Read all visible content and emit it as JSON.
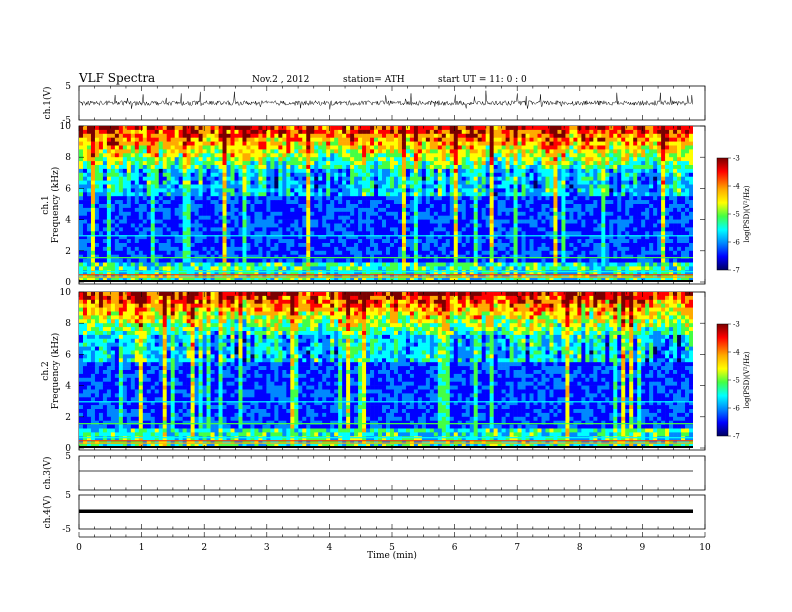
{
  "header": {
    "title": "VLF  Spectra",
    "date": "Nov.2  , 2012",
    "station": "station= ATH",
    "start": "start  UT  =    11: 0   : 0"
  },
  "colorbar": {
    "label": "log(PSD)(V²/Hz)",
    "ticks": [
      "-3",
      "-4",
      "-5",
      "-6",
      "-7"
    ],
    "colors": [
      "#7a0000",
      "#ff0000",
      "#ffaa00",
      "#ffff00",
      "#44ff44",
      "#00ffff",
      "#0088ff",
      "#0000ff",
      "#000060"
    ]
  },
  "chart_data": [
    {
      "type": "line",
      "panel": "ch1-waveform",
      "ylabel": "ch.1(V)",
      "yticks": [
        "5",
        "-5"
      ],
      "ylim": [
        -5,
        5
      ],
      "xlim": [
        0,
        10
      ],
      "description_level": "noisy broadband signal around ~0 V with spikes"
    },
    {
      "type": "heatmap",
      "panel": "ch1-spectrogram",
      "ylabel_channel": "ch.1",
      "ylabel": "Frequency  (kHz)",
      "yticks": [
        "0",
        "2",
        "4",
        "6",
        "8",
        "10"
      ],
      "ylim": [
        0,
        10
      ],
      "xlim": [
        0,
        9.8
      ],
      "zlim": [
        -7,
        -3
      ]
    },
    {
      "type": "heatmap",
      "panel": "ch2-spectrogram",
      "ylabel_channel": "ch.2",
      "ylabel": "Frequency  (kHz)",
      "yticks": [
        "0",
        "2",
        "4",
        "6",
        "8",
        "10"
      ],
      "ylim": [
        0,
        10
      ],
      "xlim": [
        0,
        9.8
      ],
      "zlim": [
        -7,
        -3
      ]
    },
    {
      "type": "line",
      "panel": "ch3-waveform",
      "ylabel": "ch.3(V)",
      "yticks": [
        "5"
      ],
      "ylim": [
        -5,
        5
      ],
      "xlim": [
        0,
        10
      ],
      "level": 0
    },
    {
      "type": "line",
      "panel": "ch4-waveform",
      "ylabel": "ch.4(V)",
      "yticks": [
        "5",
        "-5"
      ],
      "ylim": [
        -5,
        5
      ],
      "xlim": [
        0,
        10
      ],
      "level": 0
    },
    {
      "type": "axis",
      "panel": "time-axis",
      "xlabel": "Time  (min)",
      "xticks": [
        "0",
        "1",
        "2",
        "3",
        "4",
        "5",
        "6",
        "7",
        "8",
        "9",
        "10"
      ],
      "xlim": [
        0,
        10
      ]
    }
  ]
}
